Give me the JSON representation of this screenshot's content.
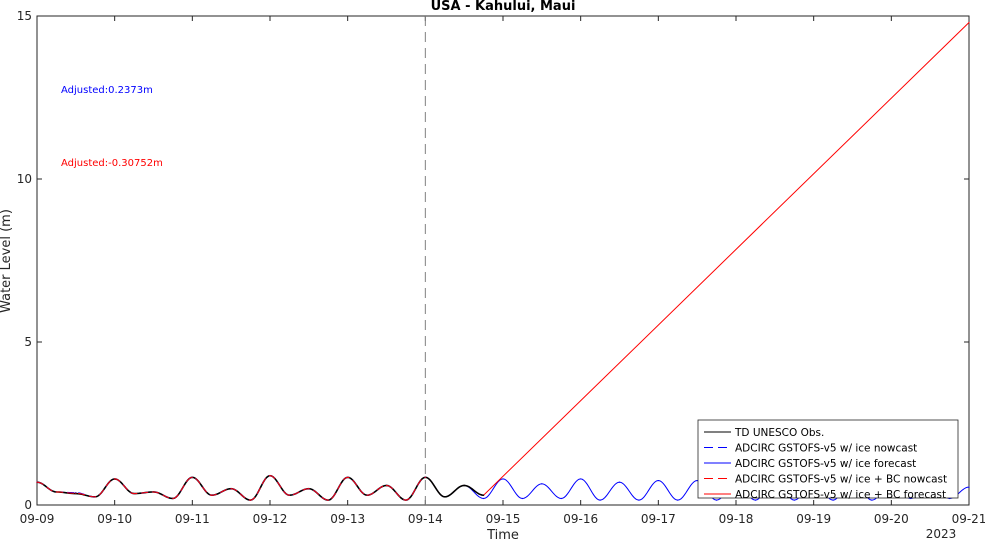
{
  "chart_data": {
    "type": "line",
    "title": "USA - Kahului, Maui",
    "xlabel": "Time",
    "ylabel": "Water Level (m)",
    "year_label": "2023",
    "ylim": [
      0,
      15
    ],
    "yticks": [
      "0",
      "5",
      "10",
      "15"
    ],
    "xticks": [
      "09-09",
      "09-10",
      "09-11",
      "09-12",
      "09-13",
      "09-14",
      "09-15",
      "09-16",
      "09-17",
      "09-18",
      "09-19",
      "09-20",
      "09-21"
    ],
    "nowcast_divider_x": "09-14",
    "annotations": [
      {
        "text": "Adjusted:0.2373m",
        "color": "#0000ff"
      },
      {
        "text": "Adjusted:-0.30752m",
        "color": "#ff0000"
      }
    ],
    "series": [
      {
        "name": "TD UNESCO Obs.",
        "color": "#000000",
        "dash": "solid",
        "x": [
          "09-09 00:00",
          "09-09 06:00",
          "09-09 12:00",
          "09-09 18:00",
          "09-10 00:00",
          "09-10 06:00",
          "09-10 12:00",
          "09-10 18:00",
          "09-11 00:00",
          "09-11 06:00",
          "09-11 12:00",
          "09-11 18:00",
          "09-12 00:00",
          "09-12 06:00",
          "09-12 12:00",
          "09-12 18:00",
          "09-13 00:00",
          "09-13 06:00",
          "09-13 12:00",
          "09-13 18:00",
          "09-14 00:00",
          "09-14 06:00",
          "09-14 12:00",
          "09-14 18:00"
        ],
        "values": [
          0.7,
          0.4,
          0.35,
          0.25,
          0.8,
          0.35,
          0.4,
          0.2,
          0.85,
          0.3,
          0.5,
          0.15,
          0.9,
          0.3,
          0.5,
          0.15,
          0.85,
          0.3,
          0.6,
          0.15,
          0.85,
          0.25,
          0.6,
          0.3
        ]
      },
      {
        "name": "ADCIRC GSTOFS-v5 w/ ice nowcast",
        "color": "#0000ff",
        "dash": "dash",
        "x": [
          "09-09 00:00",
          "09-09 06:00",
          "09-09 12:00",
          "09-09 18:00",
          "09-10 00:00",
          "09-10 06:00",
          "09-10 12:00",
          "09-10 18:00",
          "09-11 00:00",
          "09-11 06:00",
          "09-11 12:00",
          "09-11 18:00",
          "09-12 00:00",
          "09-12 06:00",
          "09-12 12:00",
          "09-12 18:00",
          "09-13 00:00",
          "09-13 06:00",
          "09-13 12:00",
          "09-13 18:00",
          "09-14 00:00"
        ],
        "values": [
          0.7,
          0.4,
          0.38,
          0.25,
          0.8,
          0.35,
          0.4,
          0.2,
          0.85,
          0.3,
          0.5,
          0.15,
          0.9,
          0.3,
          0.5,
          0.15,
          0.85,
          0.3,
          0.6,
          0.15,
          0.85
        ]
      },
      {
        "name": "ADCIRC GSTOFS-v5 w/ ice forecast",
        "color": "#0000ff",
        "dash": "solid",
        "x": [
          "09-14 00:00",
          "09-14 06:00",
          "09-14 12:00",
          "09-14 18:00",
          "09-15 00:00",
          "09-15 06:00",
          "09-15 12:00",
          "09-15 18:00",
          "09-16 00:00",
          "09-16 06:00",
          "09-16 12:00",
          "09-16 18:00",
          "09-17 00:00",
          "09-17 06:00",
          "09-17 12:00",
          "09-17 18:00",
          "09-18 00:00",
          "09-18 06:00",
          "09-18 12:00",
          "09-18 18:00",
          "09-19 00:00",
          "09-19 06:00",
          "09-19 12:00",
          "09-19 18:00",
          "09-20 00:00",
          "09-20 06:00",
          "09-20 12:00",
          "09-20 18:00",
          "09-21 00:00"
        ],
        "values": [
          0.85,
          0.25,
          0.6,
          0.2,
          0.8,
          0.2,
          0.65,
          0.2,
          0.8,
          0.15,
          0.7,
          0.15,
          0.75,
          0.15,
          0.75,
          0.15,
          0.7,
          0.15,
          0.8,
          0.15,
          0.7,
          0.15,
          0.8,
          0.15,
          0.65,
          0.2,
          0.75,
          0.2,
          0.55
        ]
      },
      {
        "name": "ADCIRC GSTOFS-v5 w/ ice + BC nowcast",
        "color": "#ff0000",
        "dash": "dash",
        "x": [
          "09-09 00:00",
          "09-09 06:00",
          "09-09 12:00",
          "09-09 18:00",
          "09-10 00:00",
          "09-10 06:00",
          "09-10 12:00",
          "09-10 18:00",
          "09-11 00:00",
          "09-11 06:00",
          "09-11 12:00",
          "09-11 18:00",
          "09-12 00:00",
          "09-12 06:00",
          "09-12 12:00",
          "09-12 18:00",
          "09-13 00:00",
          "09-13 06:00",
          "09-13 12:00",
          "09-13 18:00",
          "09-14 00:00"
        ],
        "values": [
          0.7,
          0.4,
          0.36,
          0.25,
          0.8,
          0.35,
          0.4,
          0.2,
          0.85,
          0.3,
          0.5,
          0.15,
          0.9,
          0.3,
          0.5,
          0.15,
          0.85,
          0.3,
          0.6,
          0.15,
          0.85
        ]
      },
      {
        "name": "ADCIRC GSTOFS-v5 w/ ice + BC forecast",
        "color": "#ff0000",
        "dash": "solid",
        "x": [
          "09-14 00:00",
          "09-14 06:00",
          "09-14 12:00",
          "09-14 18:00",
          "09-21 00:00"
        ],
        "values": [
          0.85,
          0.25,
          0.6,
          0.3,
          14.8
        ]
      }
    ]
  }
}
